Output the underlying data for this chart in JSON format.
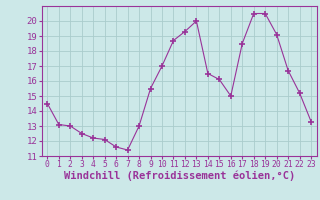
{
  "x": [
    0,
    1,
    2,
    3,
    4,
    5,
    6,
    7,
    8,
    9,
    10,
    11,
    12,
    13,
    14,
    15,
    16,
    17,
    18,
    19,
    20,
    21,
    22,
    23
  ],
  "y": [
    14.5,
    13.1,
    13.0,
    12.5,
    12.2,
    12.1,
    11.6,
    11.4,
    13.0,
    15.5,
    17.0,
    18.7,
    19.3,
    20.0,
    16.5,
    16.1,
    15.0,
    18.5,
    20.5,
    20.5,
    19.1,
    16.7,
    15.2,
    13.3
  ],
  "line_color": "#993399",
  "marker": "+",
  "marker_size": 5,
  "bg_color": "#cce8e8",
  "grid_color": "#aacccc",
  "xlabel": "Windchill (Refroidissement éolien,°C)",
  "xlabel_color": "#993399",
  "xlabel_fontsize": 7.5,
  "tick_color": "#993399",
  "tick_fontsize": 6.5,
  "ylim": [
    11,
    21
  ],
  "xlim": [
    -0.5,
    23.5
  ],
  "yticks": [
    11,
    12,
    13,
    14,
    15,
    16,
    17,
    18,
    19,
    20
  ],
  "xticks": [
    0,
    1,
    2,
    3,
    4,
    5,
    6,
    7,
    8,
    9,
    10,
    11,
    12,
    13,
    14,
    15,
    16,
    17,
    18,
    19,
    20,
    21,
    22,
    23
  ]
}
